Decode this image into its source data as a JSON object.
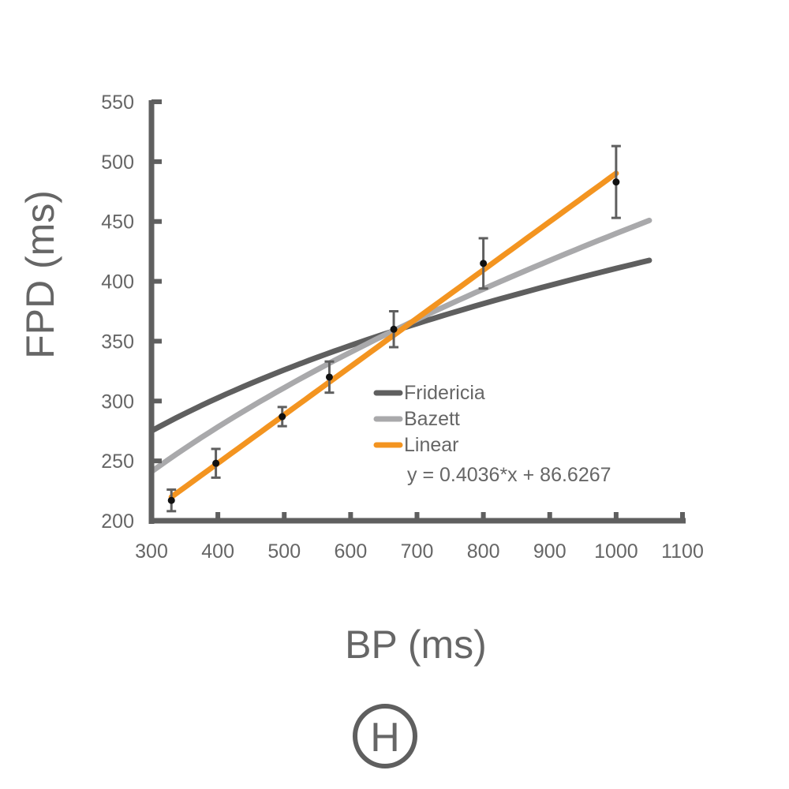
{
  "chart_data": {
    "type": "scatter",
    "xlabel": "BP (ms)",
    "ylabel": "FPD (ms)",
    "xlim": [
      300,
      1100
    ],
    "ylim": [
      200,
      550
    ],
    "xticks": [
      300,
      400,
      500,
      600,
      700,
      800,
      900,
      1000,
      1100
    ],
    "yticks": [
      200,
      250,
      300,
      350,
      400,
      450,
      500,
      550
    ],
    "grid": false,
    "legend_position": "center-right",
    "points": [
      {
        "x": 330,
        "y": 217,
        "err": 9
      },
      {
        "x": 397,
        "y": 248,
        "err": 12
      },
      {
        "x": 497,
        "y": 287,
        "err": 8
      },
      {
        "x": 568,
        "y": 320,
        "err": 13
      },
      {
        "x": 665,
        "y": 360,
        "err": 15
      },
      {
        "x": 800,
        "y": 415,
        "err": 21
      },
      {
        "x": 1000,
        "y": 483,
        "err": 30
      }
    ],
    "series": [
      {
        "name": "Fridericia",
        "kind": "fridericia",
        "color": "#5f5f5f",
        "x_range": [
          300,
          1050
        ],
        "x_ref": 662,
        "y_ref": 358
      },
      {
        "name": "Bazett",
        "kind": "bazett",
        "color": "#a9a9ab",
        "x_range": [
          300,
          1050
        ],
        "x_ref": 662,
        "y_ref": 358
      },
      {
        "name": "Linear",
        "kind": "linear",
        "color": "#f39420",
        "x_range": [
          330,
          1000
        ],
        "slope": 0.4036,
        "intercept": 86.6267
      }
    ],
    "equation": "y = 0.4036*x + 86.6267",
    "panel_label": "H",
    "colors": {
      "axis": "#5f5f5f",
      "marker": "#111111",
      "text": "#666666"
    }
  }
}
